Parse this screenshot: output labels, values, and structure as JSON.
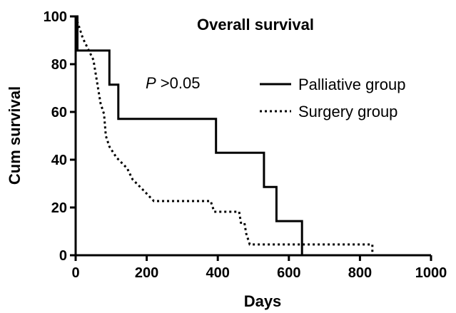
{
  "chart_data": {
    "type": "line",
    "title": "Overall survival",
    "xlabel": "Days",
    "ylabel": "Cum survival",
    "xlim": [
      0,
      1000
    ],
    "ylim": [
      0,
      100
    ],
    "xticks": [
      0,
      200,
      400,
      600,
      800,
      1000
    ],
    "yticks": [
      0,
      20,
      40,
      60,
      80,
      100
    ],
    "grid": false,
    "legend_position": "right",
    "annotation": {
      "prefix": "P",
      "text": " >0.05"
    },
    "series": [
      {
        "name": "Palliative group",
        "line_style": "solid",
        "step": true,
        "points": [
          [
            0,
            100
          ],
          [
            5,
            100
          ],
          [
            5,
            85.7
          ],
          [
            95,
            85.7
          ],
          [
            95,
            71.4
          ],
          [
            120,
            71.4
          ],
          [
            120,
            57.1
          ],
          [
            395,
            57.1
          ],
          [
            395,
            42.9
          ],
          [
            530,
            42.9
          ],
          [
            530,
            28.6
          ],
          [
            565,
            28.6
          ],
          [
            565,
            14.3
          ],
          [
            637,
            14.3
          ],
          [
            637,
            0
          ]
        ]
      },
      {
        "name": "Surgery group",
        "line_style": "dotted",
        "step": true,
        "points": [
          [
            0,
            100
          ],
          [
            10,
            95.5
          ],
          [
            20,
            90.9
          ],
          [
            35,
            86.4
          ],
          [
            50,
            81.8
          ],
          [
            60,
            72.7
          ],
          [
            70,
            63.6
          ],
          [
            80,
            59.1
          ],
          [
            85,
            50
          ],
          [
            95,
            45.5
          ],
          [
            115,
            40.9
          ],
          [
            145,
            36.4
          ],
          [
            160,
            31.8
          ],
          [
            190,
            27.3
          ],
          [
            220,
            22.7
          ],
          [
            250,
            22.7
          ],
          [
            380,
            22.7
          ],
          [
            390,
            18.2
          ],
          [
            460,
            18.2
          ],
          [
            465,
            13.6
          ],
          [
            475,
            13.6
          ],
          [
            480,
            9.1
          ],
          [
            490,
            4.5
          ],
          [
            835,
            4.5
          ],
          [
            835,
            0
          ]
        ]
      }
    ]
  }
}
